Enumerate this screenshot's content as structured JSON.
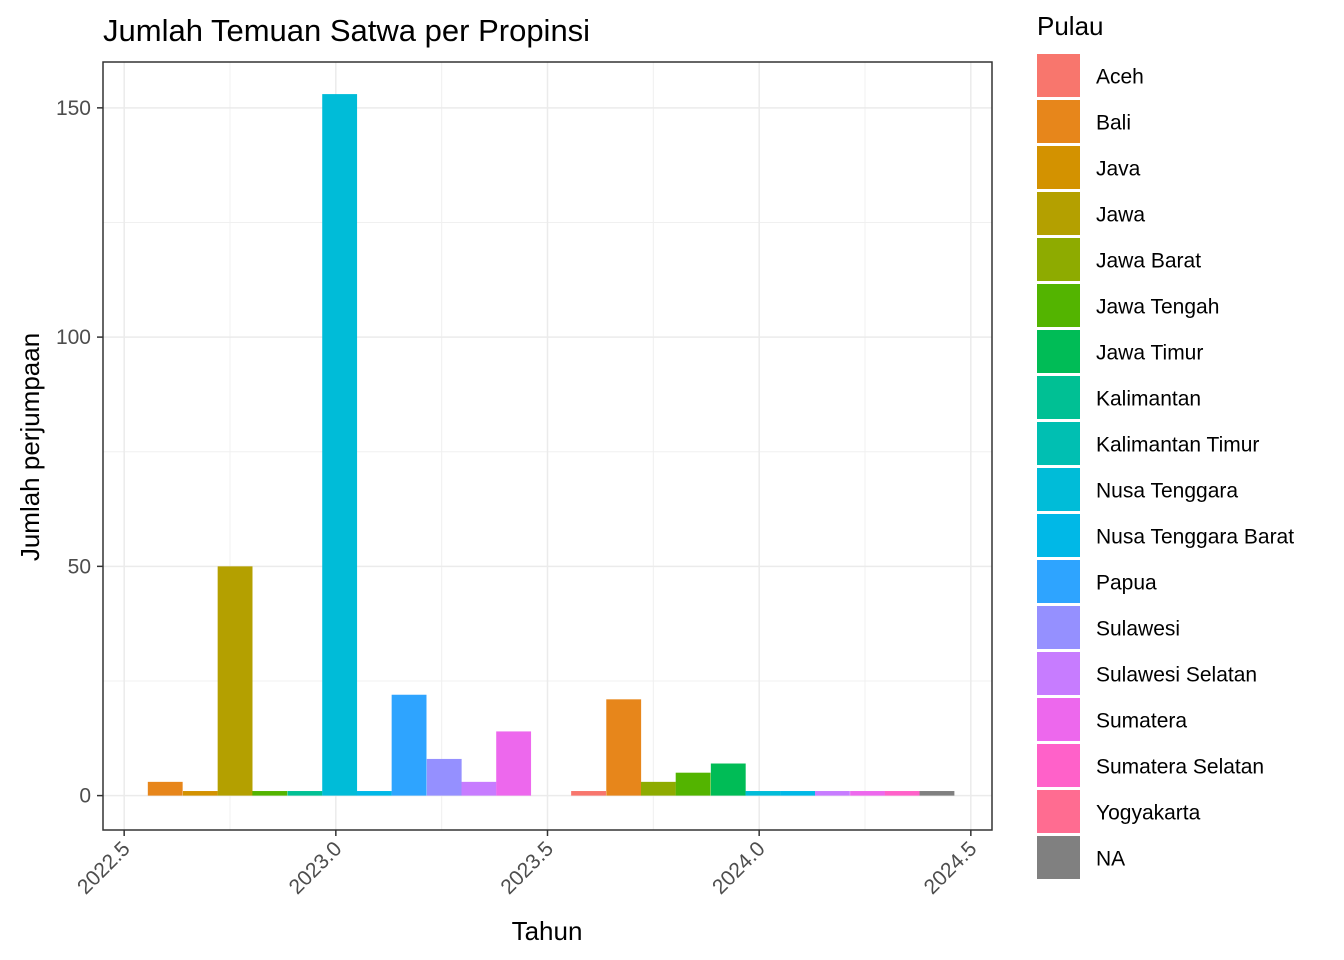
{
  "chart_data": {
    "type": "bar",
    "title": "Jumlah Temuan Satwa per Propinsi",
    "xlabel": "Tahun",
    "ylabel": "Jumlah perjumpaan",
    "xlim": [
      2022.45,
      2024.55
    ],
    "ylim": [
      -7.5,
      160
    ],
    "x_ticks": [
      2022.5,
      2023.0,
      2023.5,
      2024.0,
      2024.5
    ],
    "x_tick_labels": [
      "2022.5",
      "2023.0",
      "2023.5",
      "2024.0",
      "2024.5"
    ],
    "y_ticks": [
      0,
      50,
      100,
      150
    ],
    "y_tick_labels": [
      "0",
      "50",
      "100",
      "150"
    ],
    "grid": true,
    "legend_placement": "right",
    "legend_title": "Pulau",
    "categories": [
      "Aceh",
      "Bali",
      "Java",
      "Jawa",
      "Jawa Barat",
      "Jawa Tengah",
      "Jawa Timur",
      "Kalimantan",
      "Kalimantan Timur",
      "Nusa Tenggara",
      "Nusa Tenggara Barat",
      "Papua",
      "Sulawesi",
      "Sulawesi Selatan",
      "Sumatera",
      "Sumatera Selatan",
      "Yogyakarta",
      "NA"
    ],
    "colors": [
      "#F8766D",
      "#E7861B",
      "#D39200",
      "#B4A000",
      "#8EAB00",
      "#53B400",
      "#00BC56",
      "#00C094",
      "#00BFB2",
      "#00BCD8",
      "#00B8E7",
      "#2EA4FF",
      "#9590FF",
      "#C77CFF",
      "#ED68ED",
      "#FF61C9",
      "#FF6C91",
      "#808080"
    ],
    "bar_width": 0.0823,
    "bars": [
      {
        "series": "Bali",
        "x": 2022.597,
        "y": 3
      },
      {
        "series": "Java",
        "x": 2022.68,
        "y": 1
      },
      {
        "series": "Jawa",
        "x": 2022.762,
        "y": 50
      },
      {
        "series": "Jawa Tengah",
        "x": 2022.844,
        "y": 1
      },
      {
        "series": "Kalimantan",
        "x": 2022.927,
        "y": 1
      },
      {
        "series": "Nusa Tenggara",
        "x": 2023.009,
        "y": 153
      },
      {
        "series": "Nusa Tenggara Barat",
        "x": 2023.091,
        "y": 1
      },
      {
        "series": "Papua",
        "x": 2023.173,
        "y": 22
      },
      {
        "series": "Sulawesi",
        "x": 2023.256,
        "y": 8
      },
      {
        "series": "Sulawesi Selatan",
        "x": 2023.338,
        "y": 3
      },
      {
        "series": "Sumatera",
        "x": 2023.42,
        "y": 14
      },
      {
        "series": "Aceh",
        "x": 2023.597,
        "y": 1
      },
      {
        "series": "Bali",
        "x": 2023.68,
        "y": 21
      },
      {
        "series": "Jawa Barat",
        "x": 2023.762,
        "y": 3
      },
      {
        "series": "Jawa Tengah",
        "x": 2023.844,
        "y": 5
      },
      {
        "series": "Jawa Timur",
        "x": 2023.927,
        "y": 7
      },
      {
        "series": "Nusa Tenggara",
        "x": 2024.009,
        "y": 1
      },
      {
        "series": "Nusa Tenggara Barat",
        "x": 2024.091,
        "y": 1
      },
      {
        "series": "Sulawesi Selatan",
        "x": 2024.173,
        "y": 1
      },
      {
        "series": "Sumatera",
        "x": 2024.256,
        "y": 1
      },
      {
        "series": "Sumatera Selatan",
        "x": 2024.338,
        "y": 1
      },
      {
        "series": "NA",
        "x": 2024.42,
        "y": 1
      }
    ]
  }
}
